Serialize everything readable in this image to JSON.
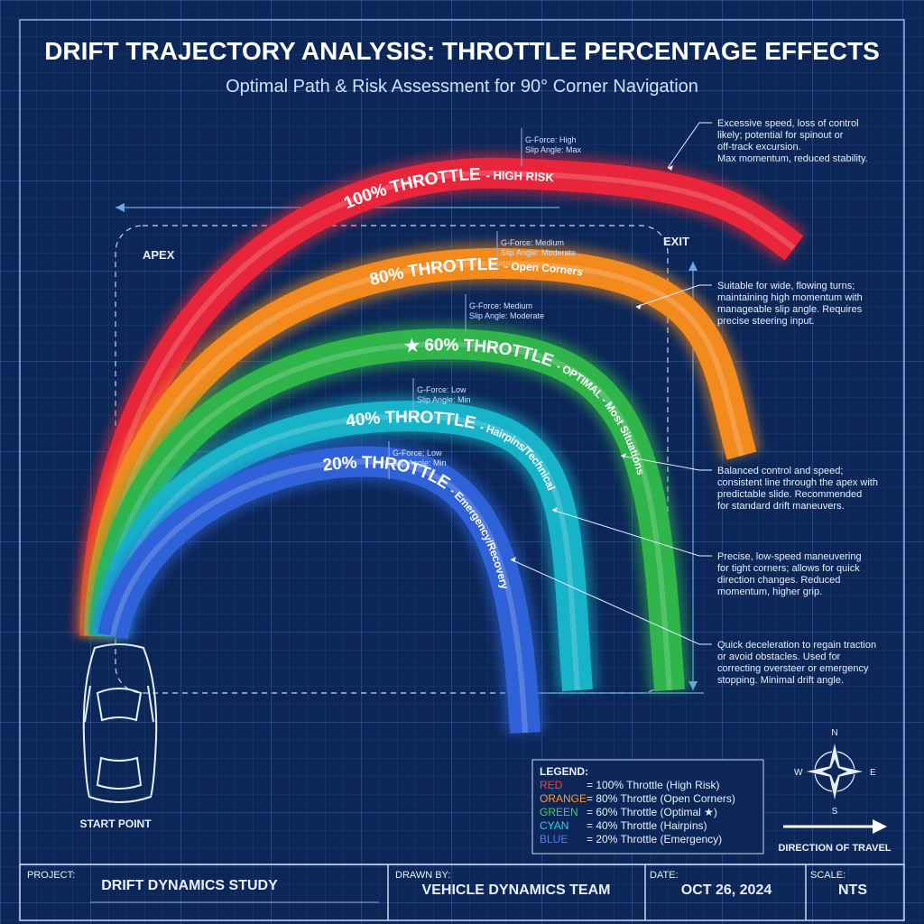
{
  "header": {
    "title": "DRIFT TRAJECTORY ANALYSIS: THROTTLE PERCENTAGE EFFECTS",
    "subtitle": "Optimal Path & Risk Assessment for 90° Corner Navigation"
  },
  "markers": {
    "apex": "APEX",
    "exit": "EXIT",
    "start": "START POINT"
  },
  "arcs": [
    {
      "label": "100% THROTTLE",
      "tag": "- HIGH RISK",
      "color": "#e8253a",
      "gforce": "G-Force: High",
      "slip": "Slip Angle: Max",
      "note": [
        "Excessive speed, loss of control",
        "likely; potential for spinout or",
        "off-track excursion.",
        "Max momentum, reduced stability."
      ]
    },
    {
      "label": "80% THROTTLE",
      "tag": "- Open Corners",
      "color": "#f28a1e",
      "gforce": "G-Force: Medium",
      "slip": "Slip Angle: Moderate",
      "note": [
        "Suitable for wide, flowing turns;",
        "maintaining high momentum with",
        "manageable slip angle. Requires",
        "precise steering input."
      ]
    },
    {
      "label": "★ 60% THROTTLE",
      "tag": "- OPTIMAL - Most Situations",
      "color": "#2fb54a",
      "gforce": "G-Force: Medium",
      "slip": "Slip Angle: Moderate",
      "note": [
        "Balanced control and speed;",
        "consistent line through the apex with",
        "predictable slide. Recommended",
        "for standard drift maneuvers."
      ]
    },
    {
      "label": "40% THROTTLE",
      "tag": "- Hairpins/Technical",
      "color": "#17b3c9",
      "gforce": "G-Force: Low",
      "slip": "Slip Angle: Min",
      "note": [
        "Precise, low-speed maneuvering",
        "for tight corners; allows for quick",
        "direction changes. Reduced",
        "momentum, higher grip."
      ]
    },
    {
      "label": "20% THROTTLE",
      "tag": "- Emergency/Recovery",
      "color": "#2f62d8",
      "gforce": "G-Force: Low",
      "slip": "Slip Angle: Min",
      "note": [
        "Quick deceleration to regain traction",
        "or avoid obstacles. Used for",
        "correcting oversteer or emergency",
        "stopping. Minimal drift angle."
      ]
    }
  ],
  "legend": {
    "title": "LEGEND:",
    "entries": [
      {
        "key": "RED",
        "text": "= 100% Throttle (High Risk)",
        "color": "#ff3b3b"
      },
      {
        "key": "ORANGE",
        "text": "= 80% Throttle (Open Corners)",
        "color": "#ff9a2a"
      },
      {
        "key": "GREEN",
        "text": "= 60% Throttle (Optimal ★)",
        "color": "#3fd35a"
      },
      {
        "key": "CYAN",
        "text": "= 40% Throttle (Hairpins)",
        "color": "#2fd3e6"
      },
      {
        "key": "BLUE",
        "text": "= 20% Throttle (Emergency)",
        "color": "#4a7dff"
      }
    ]
  },
  "compass": {
    "n": "N",
    "s": "S",
    "e": "E",
    "w": "W",
    "direction": "DIRECTION OF TRAVEL"
  },
  "footer": {
    "project_label": "PROJECT:",
    "project": "DRIFT DYNAMICS STUDY",
    "drawn_label": "DRAWN BY:",
    "drawn": "VEHICLE DYNAMICS TEAM",
    "date_label": "DATE:",
    "date": "OCT 26, 2024",
    "scale_label": "SCALE:",
    "scale": "NTS"
  }
}
